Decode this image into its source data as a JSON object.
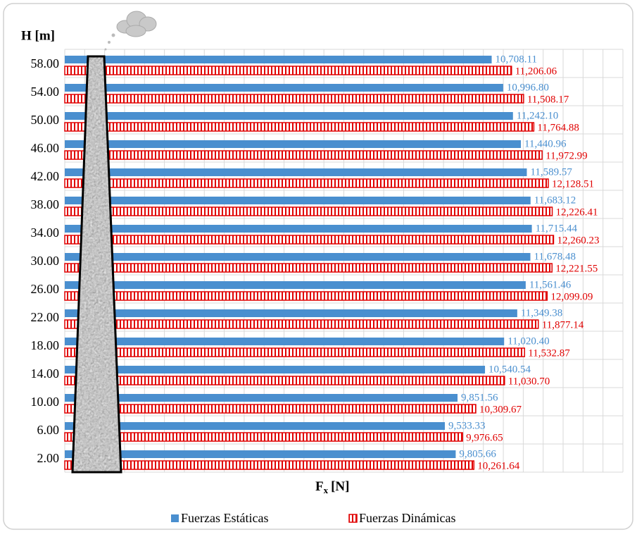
{
  "chart_data": {
    "type": "barh",
    "ylabel": "H [m]",
    "xlabel": {
      "main": "F",
      "sub": "x",
      "unit": "[N]"
    },
    "categories": [
      "58.00",
      "54.00",
      "50.00",
      "46.00",
      "42.00",
      "38.00",
      "34.00",
      "30.00",
      "26.00",
      "22.00",
      "18.00",
      "14.00",
      "10.00",
      "6.00",
      "2.00"
    ],
    "series": [
      {
        "name": "Fuerzas Estáticas",
        "color": "#4a8fcf",
        "pattern": "solid",
        "values": [
          10708.11,
          10996.8,
          11242.1,
          11440.96,
          11589.57,
          11683.12,
          11715.44,
          11678.48,
          11561.46,
          11349.38,
          11020.4,
          10540.54,
          9851.56,
          9533.33,
          9805.66
        ],
        "value_labels": [
          "10,708.11",
          "10,996.80",
          "11,242.10",
          "11,440.96",
          "11,589.57",
          "11,683.12",
          "11,715.44",
          "11,678.48",
          "11,561.46",
          "11,349.38",
          "11,020.40",
          "10,540.54",
          "9,851.56",
          "9,533.33",
          "9,805.66"
        ]
      },
      {
        "name": "Fuerzas Dinámicas",
        "color": "#e00000",
        "pattern": "stripes",
        "values": [
          11206.06,
          11508.17,
          11764.88,
          11972.99,
          12128.51,
          12226.41,
          12260.23,
          12221.55,
          12099.09,
          11877.14,
          11532.87,
          11030.7,
          10309.67,
          9976.65,
          10261.64
        ],
        "value_labels": [
          "11,206.06",
          "11,508.17",
          "11,764.88",
          "11,972.99",
          "12,128.51",
          "12,226.41",
          "12,260.23",
          "12,221.55",
          "12,099.09",
          "11,877.14",
          "11,532.87",
          "11,030.70",
          "10,309.67",
          "9,976.65",
          "10,261.64"
        ]
      }
    ],
    "xlim": [
      0,
      14000
    ],
    "xticks": [
      0,
      500,
      1000,
      1500,
      2000,
      2500,
      3000,
      3500,
      4000,
      4500,
      5000,
      5500,
      6000,
      6500,
      7000,
      7500,
      8000,
      8500,
      9000,
      9500,
      10000,
      10500,
      11000,
      11500,
      12000,
      12500,
      13000,
      13500,
      14000
    ],
    "grid": true,
    "legend": "bottom"
  }
}
